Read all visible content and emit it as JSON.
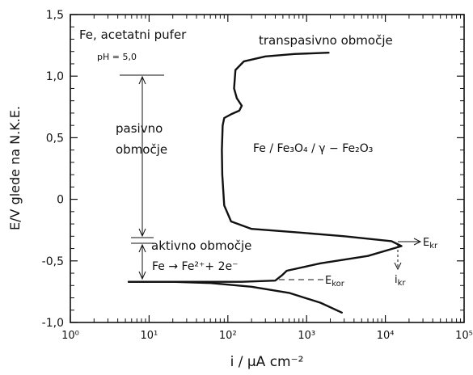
{
  "chart_data": {
    "type": "line",
    "title": "",
    "xlabel": "i / μA cm⁻²",
    "ylabel": "E/V glede na N.K.E.",
    "x_scale": "log",
    "xlim": [
      1,
      100000
    ],
    "ylim": [
      -1.0,
      1.5
    ],
    "x_ticks": [
      1,
      10,
      100,
      1000,
      10000,
      100000
    ],
    "x_tick_labels": [
      "10⁰",
      "10¹",
      "10²",
      "10³",
      "10⁴",
      "10⁵"
    ],
    "y_ticks": [
      -1.0,
      -0.5,
      0,
      0.5,
      1.0,
      1.5
    ],
    "y_tick_labels": [
      "-1,0",
      "-0,5",
      "0",
      "0,5",
      "1,0",
      "1,5"
    ],
    "grid": false,
    "series": [
      {
        "values": [
          [
            2800,
            -0.92
          ],
          [
            1500,
            -0.84
          ],
          [
            600,
            -0.76
          ],
          [
            200,
            -0.71
          ],
          [
            60,
            -0.68
          ],
          [
            20,
            -0.67
          ],
          [
            5.5,
            -0.67
          ]
        ]
      },
      {
        "values": [
          [
            5.5,
            -0.67
          ],
          [
            30,
            -0.67
          ],
          [
            150,
            -0.67
          ],
          [
            400,
            -0.66
          ],
          [
            480,
            -0.62
          ],
          [
            560,
            -0.58
          ],
          [
            1500,
            -0.52
          ],
          [
            6000,
            -0.46
          ],
          [
            16000,
            -0.38
          ],
          [
            12000,
            -0.34
          ],
          [
            3000,
            -0.3
          ],
          [
            800,
            -0.27
          ],
          [
            200,
            -0.24
          ],
          [
            110,
            -0.18
          ],
          [
            90,
            -0.05
          ],
          [
            85,
            0.2
          ],
          [
            84,
            0.4
          ],
          [
            86,
            0.6
          ],
          [
            90,
            0.66
          ],
          [
            110,
            0.69
          ],
          [
            140,
            0.72
          ],
          [
            150,
            0.76
          ],
          [
            130,
            0.82
          ],
          [
            120,
            0.9
          ],
          [
            125,
            1.05
          ],
          [
            160,
            1.12
          ],
          [
            300,
            1.16
          ],
          [
            700,
            1.18
          ],
          [
            1900,
            1.19
          ]
        ]
      }
    ],
    "annotations": {
      "header": "Fe, acetatni pufer",
      "ph": "pH = 5,0",
      "transpassive": "transpasivno območje",
      "passive_line1": "pasivno",
      "passive_line2": "območje",
      "active": "aktivno območje",
      "reaction": "Fe → Fe²⁺+ 2e⁻",
      "film": "Fe / Fe₃O₄ / γ − Fe₂O₃",
      "e_kr": "E",
      "e_kr_sub": "kr",
      "e_kor": "E",
      "e_kor_sub": "kor",
      "i_kr": "i",
      "i_kr_sub": "kr"
    }
  }
}
